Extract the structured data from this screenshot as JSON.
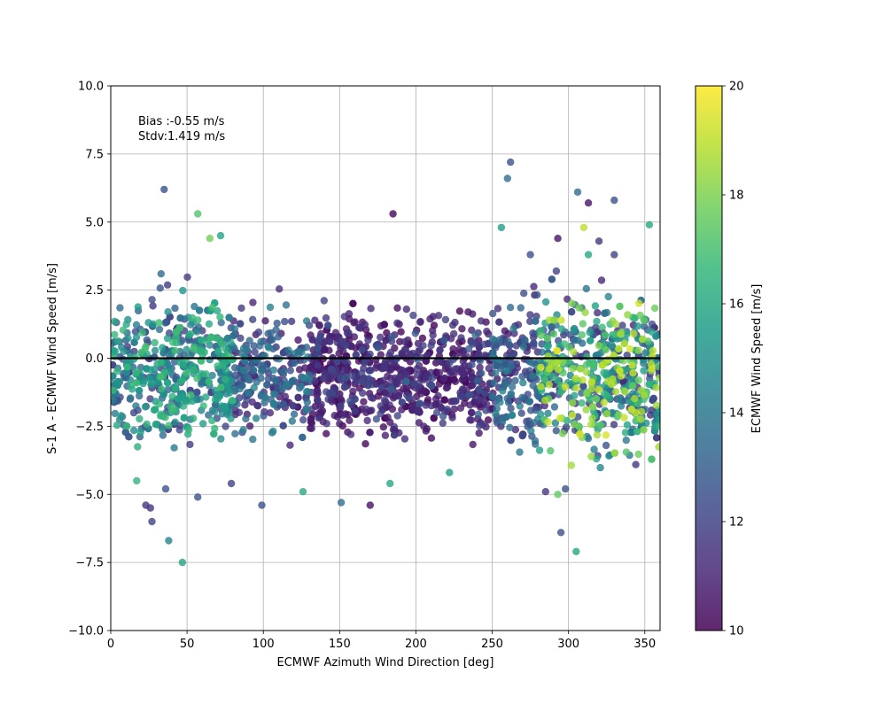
{
  "chart_data": {
    "type": "scatter",
    "title": "",
    "xlabel": "ECMWF Azimuth Wind Direction [deg]",
    "ylabel": "S-1 A - ECMWF Wind Speed [m/s]",
    "xlim": [
      0,
      360
    ],
    "ylim": [
      -10,
      10
    ],
    "xticks": [
      "0",
      "50",
      "100",
      "150",
      "200",
      "250",
      "300",
      "350"
    ],
    "yticks": [
      "−10.0",
      "−7.5",
      "−5.0",
      "−2.5",
      "0.0",
      "2.5",
      "5.0",
      "7.5",
      "10.0"
    ],
    "grid": true,
    "reference_line_y": 0,
    "annotation": {
      "bias": "Bias :-0.55 m/s",
      "stdv": "Stdv:1.419 m/s"
    },
    "colorbar": {
      "label": "ECMWF Wind Speed [m/s]",
      "range": [
        10,
        20
      ],
      "ticks": [
        "10",
        "12",
        "14",
        "16",
        "18",
        "20"
      ],
      "colormap": "viridis"
    },
    "colors": {
      "viridis": [
        "#440154",
        "#482878",
        "#3e4989",
        "#31688e",
        "#26828e",
        "#1f9e89",
        "#35b779",
        "#6ece58",
        "#b5de2b",
        "#fde725"
      ]
    },
    "series_stats": {
      "point_count": 2400,
      "bias": -0.55,
      "stdv": 1.419
    },
    "points": [
      [
        35,
        6.2,
        12.5
      ],
      [
        57,
        5.3,
        17.2
      ],
      [
        65,
        4.4,
        17.8
      ],
      [
        72,
        4.5,
        15.8
      ],
      [
        262,
        7.2,
        12.5
      ],
      [
        260,
        6.6,
        13.5
      ],
      [
        306,
        6.1,
        13.5
      ],
      [
        330,
        5.8,
        12.5
      ],
      [
        313,
        5.7,
        10.5
      ],
      [
        185,
        5.3,
        10.2
      ],
      [
        256,
        4.8,
        15.5
      ],
      [
        310,
        4.8,
        19.0
      ],
      [
        353,
        4.9,
        16.0
      ],
      [
        293,
        4.4,
        10.5
      ],
      [
        320,
        4.3,
        11.5
      ],
      [
        33,
        3.1,
        13.5
      ],
      [
        292,
        3.2,
        12.0
      ],
      [
        330,
        3.8,
        12.0
      ],
      [
        313,
        3.8,
        16.0
      ],
      [
        275,
        3.8,
        12.5
      ],
      [
        36,
        -4.8,
        12.5
      ],
      [
        23,
        -5.4,
        11.5
      ],
      [
        26,
        -5.5,
        11.5
      ],
      [
        27,
        -6.0,
        12.0
      ],
      [
        38,
        -6.7,
        14.5
      ],
      [
        47,
        -7.5,
        15.8
      ],
      [
        99,
        -5.4,
        12.5
      ],
      [
        57,
        -5.1,
        12.5
      ],
      [
        170,
        -5.4,
        10.5
      ],
      [
        151,
        -5.3,
        13.5
      ],
      [
        126,
        -4.9,
        16.0
      ],
      [
        183,
        -4.6,
        16.0
      ],
      [
        222,
        -4.2,
        15.5
      ],
      [
        285,
        -4.9,
        11.5
      ],
      [
        298,
        -4.8,
        12.5
      ],
      [
        293,
        -5.0,
        17.5
      ],
      [
        295,
        -6.4,
        12.5
      ],
      [
        305,
        -7.1,
        15.8
      ],
      [
        79,
        -4.6,
        12.0
      ],
      [
        17,
        -4.5,
        16.5
      ]
    ]
  }
}
